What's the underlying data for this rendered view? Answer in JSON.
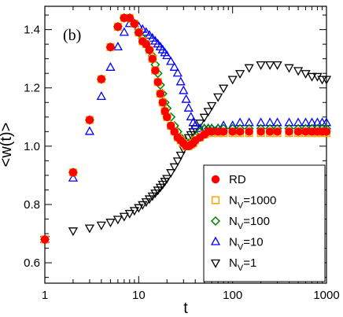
{
  "chart_data": {
    "type": "scatter",
    "panel_label": "(b)",
    "xlabel": "t",
    "ylabel": "<w(t)>",
    "xscale": "log",
    "xlim": [
      1,
      1000
    ],
    "ylim": [
      0.53,
      1.48
    ],
    "xticks": [
      1,
      10,
      100,
      1000
    ],
    "xtick_labels": [
      "1",
      "10",
      "100",
      "1000"
    ],
    "yticks": [
      0.6,
      0.8,
      1.0,
      1.2,
      1.4
    ],
    "ytick_labels": [
      "0.6",
      "0.8",
      "1.0",
      "1.2",
      "1.4"
    ],
    "legend_position": "lower-right",
    "series": [
      {
        "name": "RD",
        "sub": "",
        "marker": "circle-filled",
        "color": "#ff0000",
        "x": [
          1,
          2,
          3,
          4,
          5,
          6,
          7,
          8,
          9,
          10,
          11,
          12,
          13,
          14,
          15,
          16,
          17,
          18,
          19,
          20,
          22,
          24,
          26,
          28,
          30,
          32,
          34,
          36,
          38,
          40,
          45,
          50,
          55,
          60,
          70,
          80,
          100,
          120,
          150,
          200,
          250,
          300,
          400,
          500,
          600,
          700,
          800,
          900,
          1000
        ],
        "y": [
          0.68,
          0.91,
          1.09,
          1.23,
          1.34,
          1.41,
          1.44,
          1.44,
          1.42,
          1.39,
          1.36,
          1.35,
          1.33,
          1.3,
          1.26,
          1.22,
          1.18,
          1.15,
          1.12,
          1.1,
          1.07,
          1.05,
          1.03,
          1.02,
          1.01,
          1.0,
          1.0,
          1.005,
          1.01,
          1.02,
          1.03,
          1.04,
          1.05,
          1.05,
          1.05,
          1.05,
          1.05,
          1.05,
          1.05,
          1.05,
          1.05,
          1.05,
          1.05,
          1.05,
          1.05,
          1.05,
          1.05,
          1.05,
          1.05
        ]
      },
      {
        "name": "N",
        "sub": "V",
        "suffix": "=1000",
        "marker": "square-open",
        "color": "#ffa500",
        "x": [
          1,
          2,
          3,
          4,
          5,
          6,
          7,
          8,
          9,
          10,
          11,
          12,
          13,
          14,
          15,
          16,
          17,
          18,
          19,
          20,
          22,
          24,
          26,
          28,
          30,
          32,
          34,
          36,
          38,
          40,
          45,
          50,
          55,
          60,
          70,
          80,
          100,
          120,
          150,
          200,
          250,
          300,
          400,
          500,
          600,
          700,
          800,
          900,
          1000
        ],
        "y": [
          0.68,
          0.91,
          1.09,
          1.23,
          1.34,
          1.41,
          1.44,
          1.44,
          1.42,
          1.39,
          1.36,
          1.35,
          1.33,
          1.3,
          1.26,
          1.22,
          1.18,
          1.15,
          1.12,
          1.1,
          1.07,
          1.05,
          1.03,
          1.02,
          1.01,
          1.0,
          1.0,
          1.005,
          1.01,
          1.02,
          1.03,
          1.04,
          1.045,
          1.045,
          1.045,
          1.045,
          1.045,
          1.045,
          1.045,
          1.045,
          1.045,
          1.045,
          1.045,
          1.045,
          1.045,
          1.045,
          1.045,
          1.045,
          1.045
        ]
      },
      {
        "name": "N",
        "sub": "V",
        "suffix": "=100",
        "marker": "diamond-open",
        "color": "#008000",
        "x": [
          1,
          2,
          3,
          4,
          5,
          6,
          7,
          8,
          9,
          10,
          11,
          12,
          13,
          14,
          15,
          16,
          17,
          18,
          19,
          20,
          22,
          24,
          26,
          28,
          30,
          32,
          34,
          36,
          38,
          40,
          45,
          50,
          55,
          60,
          70,
          80,
          100,
          120,
          150,
          200,
          250,
          300,
          400,
          500,
          600,
          700,
          800,
          900,
          1000
        ],
        "y": [
          0.68,
          0.91,
          1.09,
          1.23,
          1.34,
          1.41,
          1.44,
          1.44,
          1.42,
          1.39,
          1.37,
          1.35,
          1.33,
          1.31,
          1.28,
          1.25,
          1.21,
          1.18,
          1.15,
          1.13,
          1.1,
          1.07,
          1.05,
          1.03,
          1.02,
          1.01,
          1.01,
          1.01,
          1.02,
          1.03,
          1.05,
          1.06,
          1.06,
          1.06,
          1.06,
          1.06,
          1.06,
          1.06,
          1.06,
          1.06,
          1.06,
          1.06,
          1.06,
          1.06,
          1.06,
          1.06,
          1.06,
          1.06,
          1.06
        ]
      },
      {
        "name": "N",
        "sub": "V",
        "suffix": "=10",
        "marker": "triangle-up-open",
        "color": "#0000ff",
        "x": [
          1,
          2,
          3,
          4,
          5,
          6,
          7,
          8,
          9,
          10,
          11,
          12,
          13,
          14,
          15,
          16,
          17,
          18,
          19,
          20,
          22,
          24,
          26,
          28,
          30,
          32,
          34,
          36,
          38,
          40,
          45,
          50,
          55,
          60,
          70,
          80,
          100,
          120,
          150,
          200,
          250,
          300,
          400,
          500,
          600,
          700,
          800,
          900,
          1000
        ],
        "y": [
          0.68,
          0.89,
          1.05,
          1.17,
          1.27,
          1.34,
          1.39,
          1.42,
          1.42,
          1.41,
          1.4,
          1.39,
          1.38,
          1.37,
          1.36,
          1.35,
          1.34,
          1.33,
          1.32,
          1.31,
          1.29,
          1.27,
          1.25,
          1.22,
          1.19,
          1.16,
          1.13,
          1.1,
          1.08,
          1.07,
          1.06,
          1.06,
          1.06,
          1.06,
          1.06,
          1.07,
          1.07,
          1.08,
          1.08,
          1.08,
          1.08,
          1.08,
          1.08,
          1.08,
          1.08,
          1.08,
          1.08,
          1.08,
          1.08
        ]
      },
      {
        "name": "N",
        "sub": "V",
        "suffix": "=1",
        "marker": "triangle-down-open",
        "color": "#000000",
        "x": [
          1,
          2,
          3,
          4,
          5,
          6,
          7,
          8,
          9,
          10,
          11,
          12,
          13,
          14,
          15,
          16,
          17,
          18,
          19,
          20,
          22,
          24,
          26,
          28,
          30,
          32,
          34,
          36,
          38,
          40,
          45,
          50,
          55,
          60,
          70,
          80,
          100,
          120,
          150,
          200,
          250,
          300,
          400,
          500,
          600,
          700,
          800,
          900,
          1000
        ],
        "y": [
          0.68,
          0.71,
          0.72,
          0.73,
          0.74,
          0.75,
          0.76,
          0.77,
          0.78,
          0.79,
          0.8,
          0.81,
          0.82,
          0.83,
          0.84,
          0.85,
          0.86,
          0.87,
          0.88,
          0.89,
          0.91,
          0.93,
          0.95,
          0.97,
          0.99,
          1.01,
          1.03,
          1.04,
          1.05,
          1.06,
          1.08,
          1.1,
          1.12,
          1.14,
          1.17,
          1.2,
          1.23,
          1.25,
          1.27,
          1.28,
          1.28,
          1.28,
          1.27,
          1.26,
          1.25,
          1.24,
          1.24,
          1.23,
          1.23
        ]
      }
    ]
  }
}
